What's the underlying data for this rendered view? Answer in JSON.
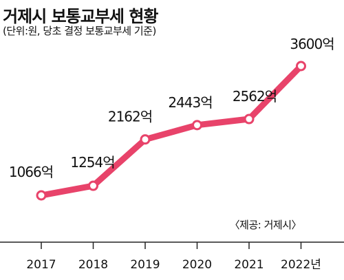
{
  "title": "거제시 보통교부세 현황",
  "subtitle": "(단위:원, 당초 결정 보통교부세 기준)",
  "source": "〈제공: 거제시〉",
  "colors": {
    "line": "#e8436a",
    "marker_fill": "#ffffff",
    "axis": "#222222"
  },
  "chart_data": {
    "type": "line",
    "title": "거제시 보통교부세 현황",
    "subtitle": "(단위:원, 당초 결정 보통교부세 기준)",
    "x": [
      "2017",
      "2018",
      "2019",
      "2020",
      "2021",
      "2022"
    ],
    "x_tick_labels": [
      "2017",
      "2018",
      "2019",
      "2020",
      "2021",
      "2022년"
    ],
    "values": [
      1066,
      1254,
      2162,
      2443,
      2562,
      3600
    ],
    "data_labels": [
      "1066억",
      "1254억",
      "2162억",
      "2443억",
      "2562억",
      "3600억"
    ],
    "unit": "억",
    "xlabel": "",
    "ylabel": "",
    "grid": false,
    "legend": "none"
  }
}
